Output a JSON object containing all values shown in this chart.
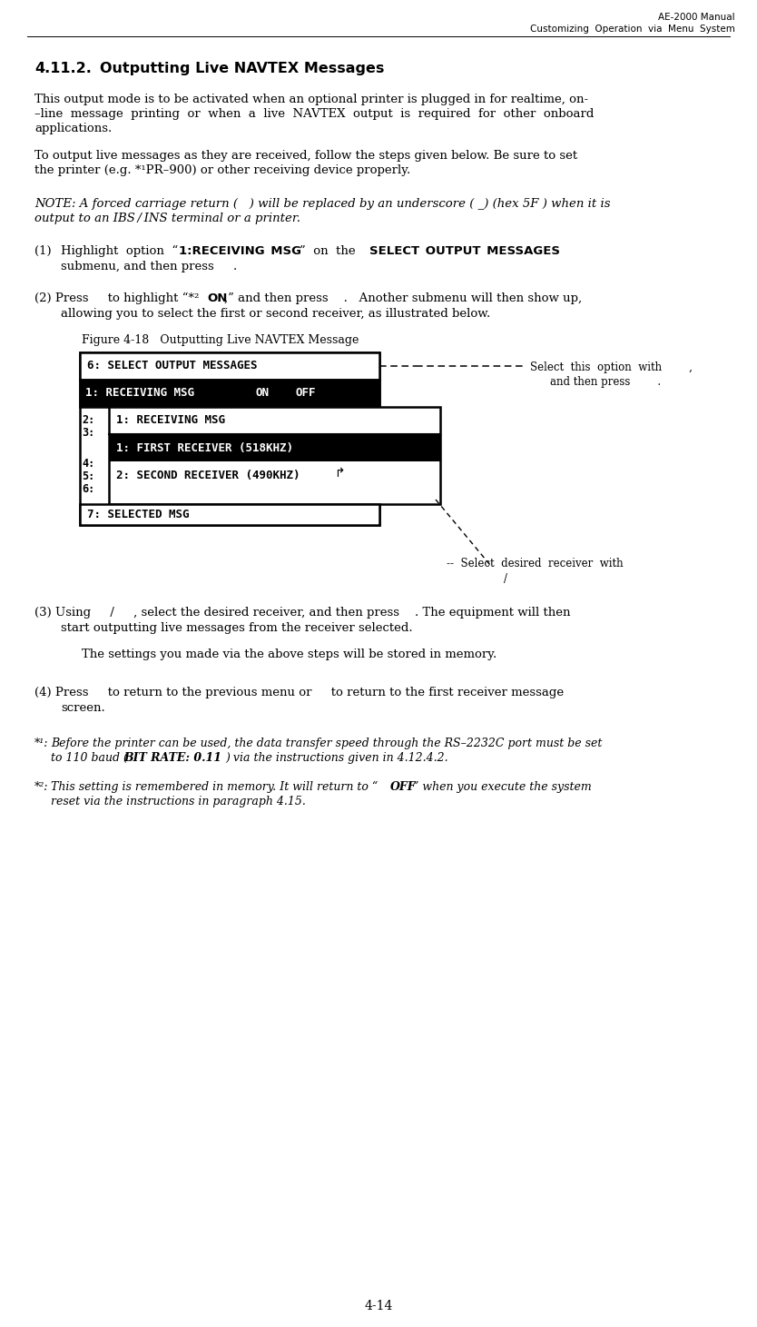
{
  "header_right_line1": "AE-2000 Manual",
  "header_right_line2": "Customizing  Operation  via  Menu  System",
  "page_number": "4-14",
  "bg_color": "#ffffff"
}
